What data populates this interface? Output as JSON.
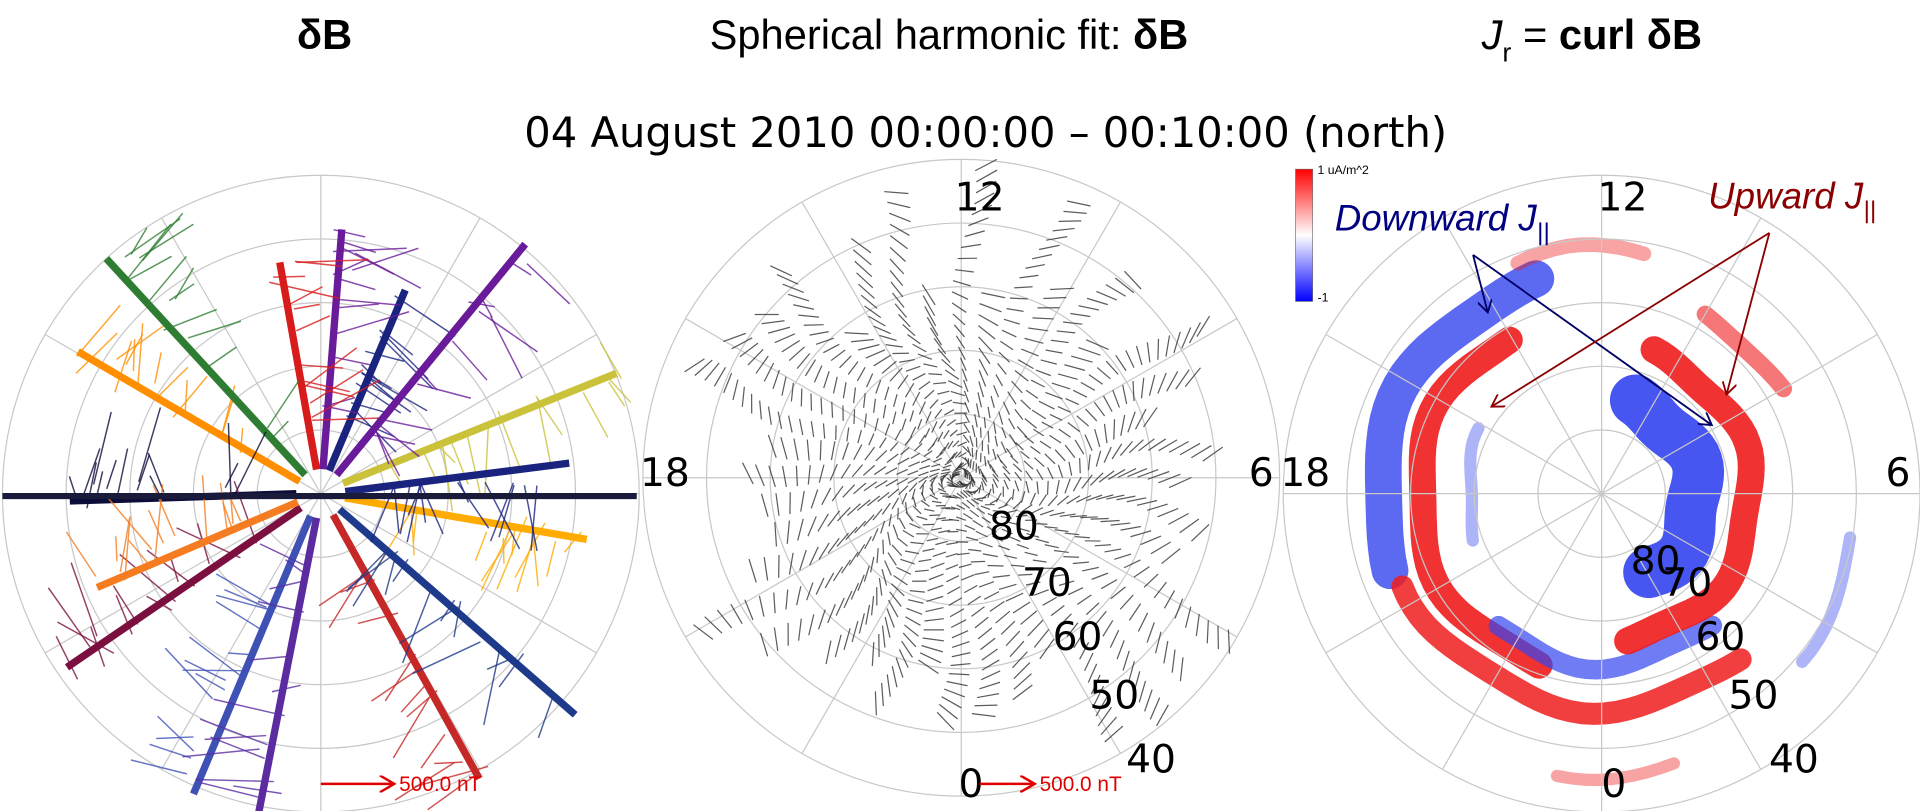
{
  "figure": {
    "panels": [
      {
        "title": "δB",
        "scale_label": "500.0 nT"
      },
      {
        "title_parts": [
          "Spherical harmonic fit: ",
          "δB"
        ],
        "subtitle": "04  August  2010    00:00:00  –  00:10:00    (north)",
        "hour_labels": [
          "12",
          "18",
          "6",
          "0"
        ],
        "lat_labels": [
          "80",
          "70",
          "60",
          "50",
          "40"
        ],
        "scale_label": "500.0 nT"
      },
      {
        "title_parts": [
          "J",
          "r",
          " = ",
          "curl δB"
        ],
        "hour_labels": [
          "12",
          "18",
          "6",
          "0"
        ],
        "lat_labels": [
          "80",
          "70",
          "60",
          "50",
          "40"
        ],
        "colorbar_labels": [
          "1 uA/m^2",
          "-1"
        ],
        "annotations": [
          {
            "parts": [
              "Downward J",
              "||"
            ]
          },
          {
            "parts": [
              "Upward J",
              "||"
            ]
          }
        ]
      }
    ]
  }
}
